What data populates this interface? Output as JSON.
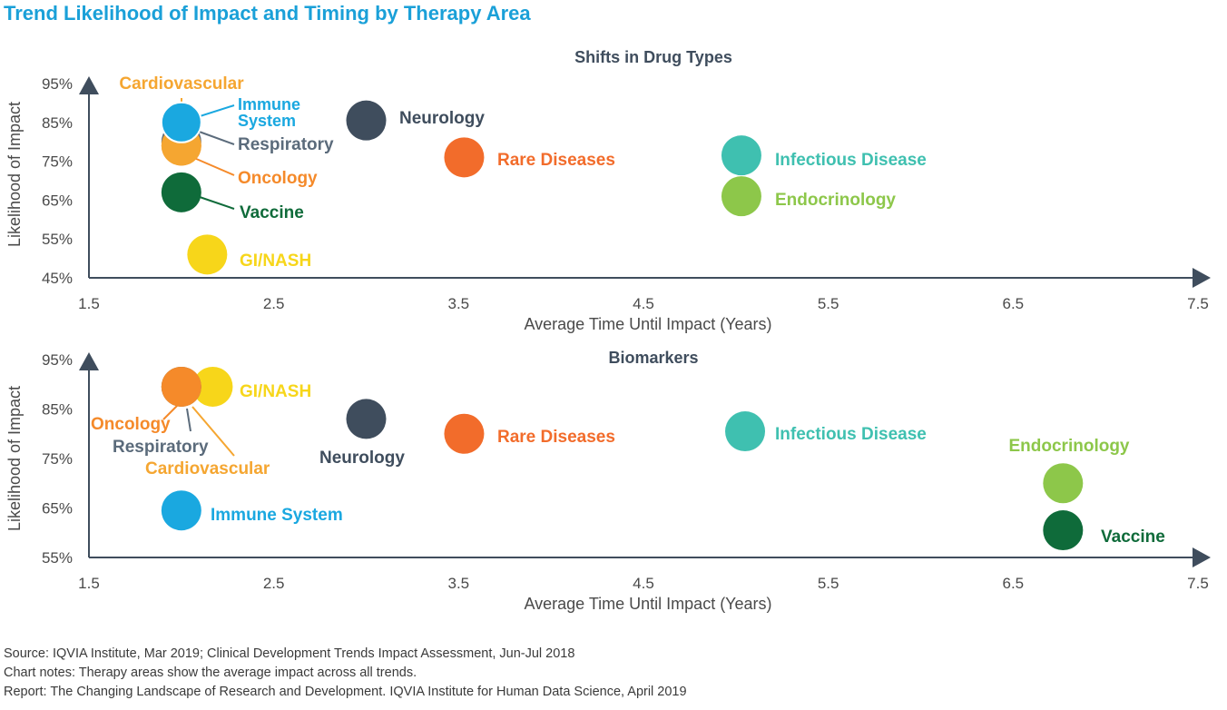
{
  "page": {
    "title": "Trend Likelihood of Impact and Timing by Therapy Area",
    "source": "Source: IQVIA Institute, Mar 2019; Clinical Development Trends Impact Assessment, Jun-Jul 2018",
    "notes": "Chart notes: Therapy areas show the average impact across all trends.",
    "report": "Report: The Changing Landscape of Research and Development. IQVIA Institute for Human Data Science, April 2019"
  },
  "chart_data": [
    {
      "type": "scatter",
      "title": "Shifts in Drug Types",
      "xlabel": "Average Time Until Impact (Years)",
      "ylabel": "Likelihood of Impact",
      "xlim": [
        1.5,
        7.5
      ],
      "ylim": [
        45,
        95
      ],
      "x_ticks": [
        "1.5",
        "2.5",
        "3.5",
        "4.5",
        "5.5",
        "6.5",
        "7.5"
      ],
      "y_ticks": [
        "45%",
        "55%",
        "65%",
        "75%",
        "85%",
        "95%"
      ],
      "points": [
        {
          "label": "Cardiovascular",
          "x": 2.0,
          "y": 79,
          "color": "#f5a631"
        },
        {
          "label": "Respiratory",
          "x": 2.0,
          "y": 80,
          "color": "#5b6b7b"
        },
        {
          "label": "Oncology",
          "x": 2.0,
          "y": 79,
          "color": "#f58a2a"
        },
        {
          "label": "Immune System",
          "x": 2.0,
          "y": 85,
          "color": "#1aa8e0"
        },
        {
          "label": "Vaccine",
          "x": 2.0,
          "y": 67,
          "color": "#0f6b3a"
        },
        {
          "label": "GI/NASH",
          "x": 2.14,
          "y": 51,
          "color": "#f7d61a"
        },
        {
          "label": "Neurology",
          "x": 3.0,
          "y": 85.5,
          "color": "#3f4d5d"
        },
        {
          "label": "Rare Diseases",
          "x": 3.53,
          "y": 76,
          "color": "#f26c2b"
        },
        {
          "label": "Infectious Disease",
          "x": 5.03,
          "y": 76.5,
          "color": "#3fc0b0"
        },
        {
          "label": "Endocrinology",
          "x": 5.03,
          "y": 66,
          "color": "#8dc74a"
        }
      ]
    },
    {
      "type": "scatter",
      "title": "Biomarkers",
      "xlabel": "Average Time Until Impact (Years)",
      "ylabel": "Likelihood of Impact",
      "xlim": [
        1.5,
        7.5
      ],
      "ylim": [
        55,
        95
      ],
      "x_ticks": [
        "1.5",
        "2.5",
        "3.5",
        "4.5",
        "5.5",
        "6.5",
        "7.5"
      ],
      "y_ticks": [
        "55%",
        "65%",
        "75%",
        "85%",
        "95%"
      ],
      "points": [
        {
          "label": "GI/NASH",
          "x": 2.17,
          "y": 89.5,
          "color": "#f7d61a"
        },
        {
          "label": "Cardiovascular",
          "x": 2.0,
          "y": 89.5,
          "color": "#f5a631"
        },
        {
          "label": "Respiratory",
          "x": 2.0,
          "y": 89.5,
          "color": "#5b6b7b"
        },
        {
          "label": "Oncology",
          "x": 2.0,
          "y": 89.5,
          "color": "#f58a2a"
        },
        {
          "label": "Neurology",
          "x": 3.0,
          "y": 83,
          "color": "#3f4d5d"
        },
        {
          "label": "Rare Diseases",
          "x": 3.53,
          "y": 80,
          "color": "#f26c2b"
        },
        {
          "label": "Infectious Disease",
          "x": 5.05,
          "y": 80.5,
          "color": "#3fc0b0"
        },
        {
          "label": "Immune System",
          "x": 2.0,
          "y": 64.5,
          "color": "#1aa8e0"
        },
        {
          "label": "Endocrinology",
          "x": 6.77,
          "y": 70,
          "color": "#8dc74a"
        },
        {
          "label": "Vaccine",
          "x": 6.77,
          "y": 60.5,
          "color": "#0f6b3a"
        }
      ]
    }
  ]
}
